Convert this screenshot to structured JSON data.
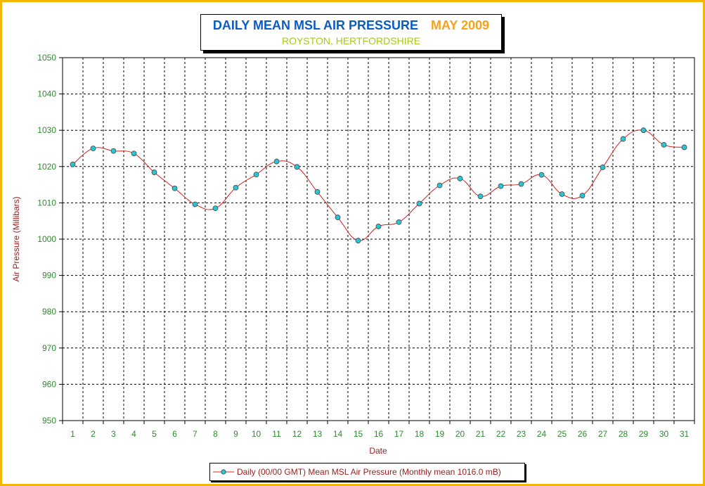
{
  "title": {
    "main": "DAILY MEAN MSL AIR PRESSURE",
    "date": "MAY 2009",
    "location": "ROYSTON, HERTFORDSHIRE"
  },
  "colors": {
    "frame": "#f2b600",
    "title_main": "#0a5cc4",
    "title_date": "#f5a31a",
    "subtitle": "#a8c81e",
    "axis_text": "#2e8b2e",
    "axis_label": "#9b1b1b",
    "line": "#d42020",
    "marker_fill": "#27c6d4",
    "marker_stroke": "#444444"
  },
  "chart_data": {
    "type": "line",
    "xlabel": "Date",
    "ylabel": "Air Pressure (Millibars)",
    "ylim": [
      950,
      1050
    ],
    "ytick_step": 10,
    "grid": true,
    "legend_position": "bottom-center",
    "x": [
      1,
      2,
      3,
      4,
      5,
      6,
      7,
      8,
      9,
      10,
      11,
      12,
      13,
      14,
      15,
      16,
      17,
      18,
      19,
      20,
      21,
      22,
      23,
      24,
      25,
      26,
      27,
      28,
      29,
      30,
      31
    ],
    "series": [
      {
        "name": "Daily (00/00 GMT) Mean MSL Air Pressure (Monthly mean 1016.0 mB)",
        "values": [
          1020.6,
          1025.0,
          1024.3,
          1023.6,
          1018.4,
          1014.0,
          1009.6,
          1008.5,
          1014.2,
          1017.8,
          1021.4,
          1019.9,
          1013.0,
          1006.0,
          999.6,
          1003.5,
          1004.7,
          1009.8,
          1014.8,
          1016.7,
          1011.8,
          1014.6,
          1015.2,
          1017.7,
          1012.4,
          1012.0,
          1019.8,
          1027.6,
          1030.0,
          1026.0,
          1025.3
        ]
      }
    ]
  }
}
